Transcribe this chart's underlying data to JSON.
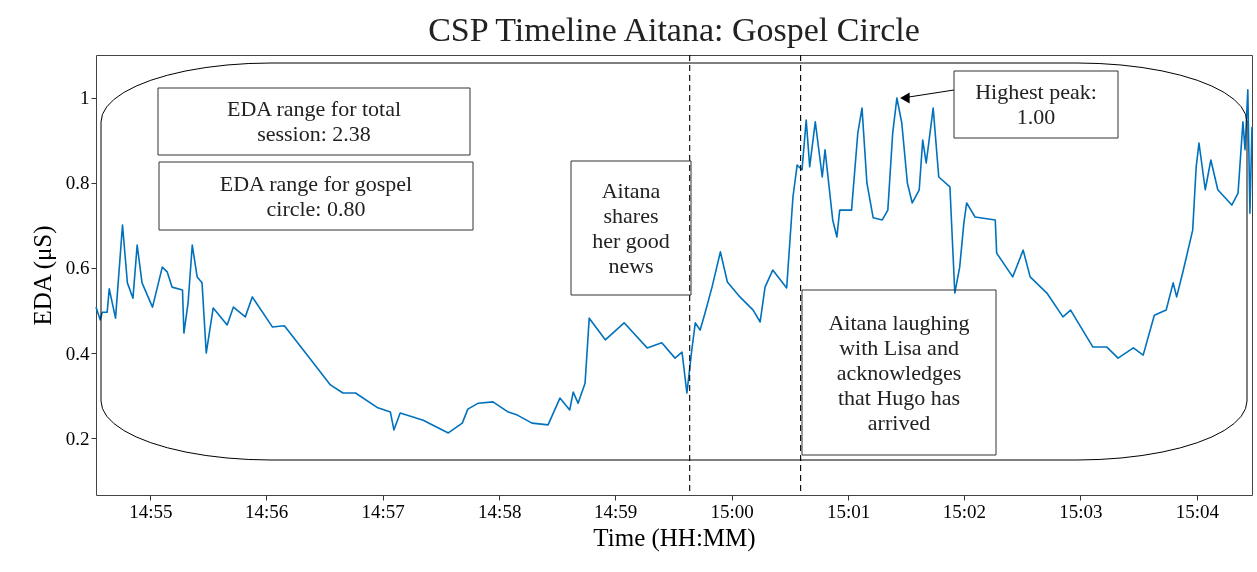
{
  "chart_data": {
    "type": "line",
    "title": "CSP Timeline Aitana: Gospel Circle",
    "xlabel": "Time (HH:MM)",
    "ylabel": "EDA (μS)",
    "x": [
      14.9089,
      14.9095,
      14.9098,
      14.9105,
      14.9108,
      14.9117,
      14.9127,
      14.9134,
      14.9142,
      14.9148,
      14.9155,
      14.917,
      14.9184,
      14.9191,
      14.9198,
      14.9213,
      14.9215,
      14.9221,
      14.9227,
      14.9234,
      14.9241,
      14.9247,
      14.9257,
      14.9277,
      14.9286,
      14.9303,
      14.9313,
      14.9342,
      14.9359,
      14.9392,
      14.9425,
      14.9443,
      14.9461,
      14.9493,
      14.9511,
      14.9516,
      14.9525,
      14.9558,
      14.9594,
      14.9614,
      14.9622,
      14.9637,
      14.9658,
      14.968,
      14.9693,
      14.9714,
      14.9737,
      14.9754,
      14.9768,
      14.9773,
      14.978,
      14.979,
      14.9796,
      14.9819,
      14.9846,
      14.9879,
      14.99,
      14.9919,
      14.9929,
      14.9936,
      14.9943,
      14.9948,
      14.9955,
      14.9962,
      14.9972,
      14.9984,
      14.9994,
      15.0012,
      15.0031,
      15.0041,
      15.0048,
      15.0059,
      15.0079,
      15.0088,
      15.0094,
      15.0101,
      15.0107,
      15.0112,
      15.012,
      15.013,
      15.0134,
      15.0145,
      15.0151,
      15.0155,
      15.0172,
      15.0181,
      15.0187,
      15.0194,
      15.0203,
      15.0216,
      15.0224,
      15.0231,
      15.0237,
      15.0244,
      15.0252,
      15.0259,
      15.0269,
      15.0274,
      15.0279,
      15.0289,
      15.0297,
      15.0313,
      15.032,
      15.0327,
      15.0333,
      15.0337,
      15.0349,
      15.0378,
      15.038,
      15.0403,
      15.0418,
      15.0428,
      15.0452,
      15.0475,
      15.0486,
      15.0518,
      15.0538,
      15.0554,
      15.0576,
      15.059,
      15.0606,
      15.0623,
      15.0633,
      15.0638,
      15.0647,
      15.0661,
      15.0666,
      15.067,
      15.0679,
      15.0687,
      15.0697,
      15.0717,
      15.0726,
      15.0733,
      15.0736,
      15.074,
      15.0743,
      15.0746
    ],
    "series": [
      {
        "color": "#0072bd",
        "values": [
          0.508,
          0.478,
          0.496,
          0.496,
          0.551,
          0.482,
          0.701,
          0.565,
          0.529,
          0.654,
          0.565,
          0.508,
          0.602,
          0.591,
          0.555,
          0.548,
          0.447,
          0.518,
          0.654,
          0.579,
          0.565,
          0.4,
          0.506,
          0.466,
          0.508,
          0.485,
          0.532,
          0.461,
          0.464,
          0.395,
          0.325,
          0.306,
          0.306,
          0.271,
          0.261,
          0.219,
          0.259,
          0.242,
          0.212,
          0.235,
          0.268,
          0.282,
          0.285,
          0.261,
          0.254,
          0.235,
          0.231,
          0.294,
          0.266,
          0.308,
          0.282,
          0.329,
          0.482,
          0.431,
          0.471,
          0.412,
          0.424,
          0.388,
          0.402,
          0.306,
          0.407,
          0.471,
          0.454,
          0.494,
          0.555,
          0.638,
          0.567,
          0.532,
          0.501,
          0.473,
          0.555,
          0.595,
          0.553,
          0.767,
          0.842,
          0.831,
          0.948,
          0.838,
          0.944,
          0.814,
          0.878,
          0.713,
          0.673,
          0.736,
          0.736,
          0.918,
          0.976,
          0.8,
          0.718,
          0.713,
          0.736,
          0.918,
          1.0,
          0.941,
          0.8,
          0.753,
          0.784,
          0.901,
          0.847,
          0.976,
          0.814,
          0.791,
          0.541,
          0.602,
          0.706,
          0.753,
          0.72,
          0.713,
          0.635,
          0.579,
          0.642,
          0.579,
          0.541,
          0.485,
          0.501,
          0.414,
          0.414,
          0.388,
          0.412,
          0.395,
          0.489,
          0.501,
          0.565,
          0.532,
          0.591,
          0.689,
          0.838,
          0.894,
          0.784,
          0.854,
          0.784,
          0.748,
          0.776,
          0.944,
          0.878,
          1.019,
          0.729,
          0.932
        ]
      }
    ],
    "xlim": [
      14.9089,
      15.0746
    ],
    "ylim": [
      0.066,
      1.101
    ],
    "xticks": [
      {
        "value": 14.9167,
        "label": "14:55"
      },
      {
        "value": 14.9333,
        "label": "14:56"
      },
      {
        "value": 14.95,
        "label": "14:57"
      },
      {
        "value": 14.9667,
        "label": "14:58"
      },
      {
        "value": 14.9833,
        "label": "14:59"
      },
      {
        "value": 15.0,
        "label": "15:00"
      },
      {
        "value": 15.0167,
        "label": "15:01"
      },
      {
        "value": 15.0333,
        "label": "15:02"
      },
      {
        "value": 15.05,
        "label": "15:03"
      },
      {
        "value": 15.0667,
        "label": "15:04"
      }
    ],
    "yticks": [
      0.2,
      0.4,
      0.6,
      0.8,
      1
    ],
    "ref_lines": [
      {
        "axis": "x",
        "value": 14.994,
        "color": "#000000",
        "line_style": "dashed"
      },
      {
        "axis": "x",
        "value": 15.0099,
        "color": "#000000",
        "line_style": "dashed"
      }
    ],
    "annotations": [
      "EDA range for total session: 2.38",
      "EDA range for gospel circle: 0.80",
      "Aitana shares her good news",
      "Aitana laughing with Lisa and acknowledges that Hugo has arrived",
      {
        "text": "Highest peak: 1.00",
        "x": 15.0237,
        "y": 1.0
      }
    ],
    "grid": false,
    "marker": "none",
    "line_style": "solid"
  }
}
